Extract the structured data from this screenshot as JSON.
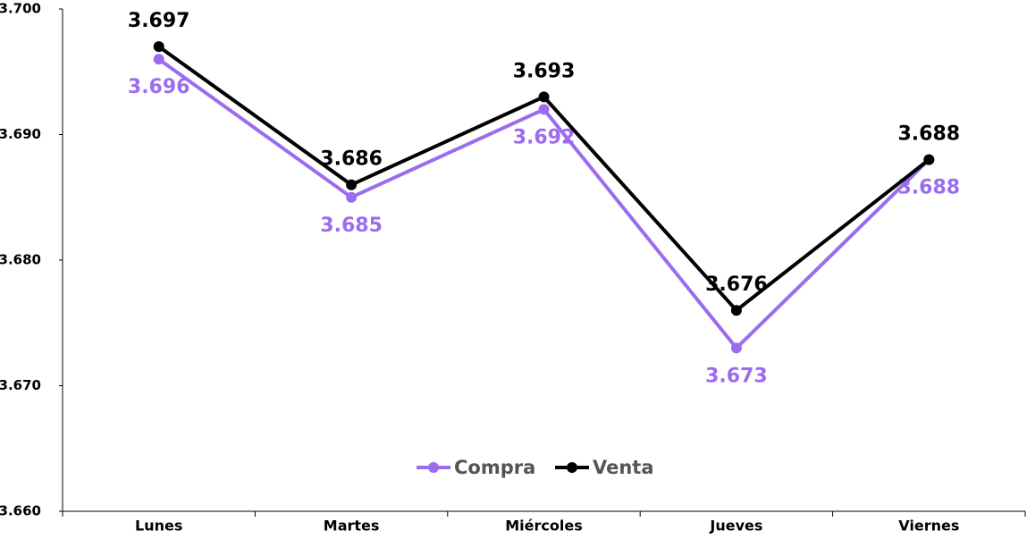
{
  "chart_data": {
    "type": "line",
    "categories": [
      "Lunes",
      "Martes",
      "Miércoles",
      "Jueves",
      "Viernes"
    ],
    "series": [
      {
        "name": "Compra",
        "color": "#9b6cf0",
        "values": [
          3696,
          3685,
          3692,
          3673,
          3688
        ],
        "value_labels": [
          "3.696",
          "3.685",
          "3.692",
          "3.673",
          "3.688"
        ]
      },
      {
        "name": "Venta",
        "color": "#000000",
        "values": [
          3697,
          3686,
          3693,
          3676,
          3688
        ],
        "value_labels": [
          "3.697",
          "3.686",
          "3.693",
          "3.676",
          "3.688"
        ]
      }
    ],
    "ylim": [
      3660,
      3700
    ],
    "yticks": [
      {
        "value": 3660,
        "label": "3.660"
      },
      {
        "value": 3670,
        "label": "3.670"
      },
      {
        "value": 3680,
        "label": "3.680"
      },
      {
        "value": 3690,
        "label": "3.690"
      },
      {
        "value": 3700,
        "label": "3.700"
      }
    ],
    "grid": false,
    "legend": "bottom"
  }
}
